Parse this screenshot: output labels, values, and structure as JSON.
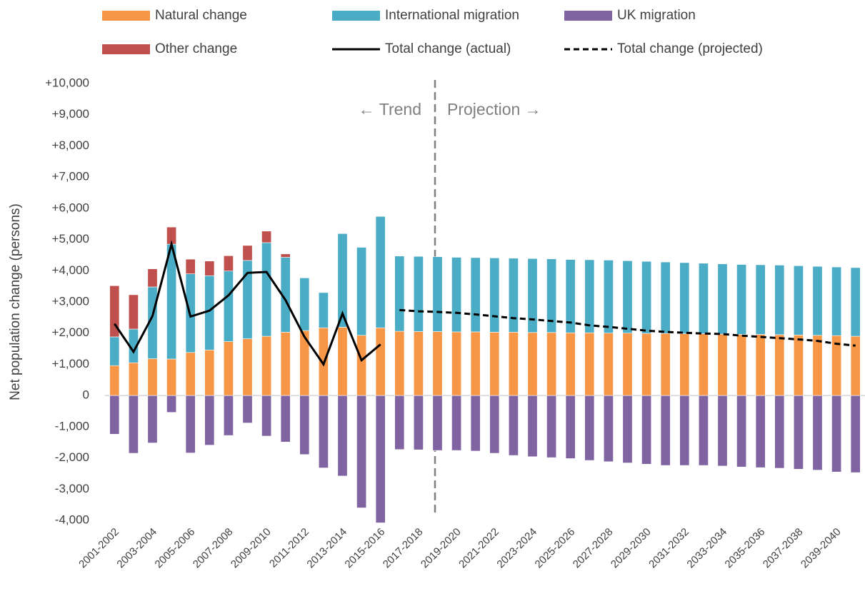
{
  "chart_data": {
    "type": "stacked-bar-line",
    "y_label": "Net population change (persons)",
    "annotations": [
      "← Trend",
      "Projection →"
    ],
    "categories": [
      "2001-2002",
      null,
      "2003-2004",
      null,
      "2005-2006",
      null,
      "2007-2008",
      null,
      "2009-2010",
      null,
      "2011-2012",
      null,
      "2013-2014",
      null,
      "2015-2016",
      null,
      "2017-2018",
      null,
      "2019-2020",
      null,
      "2021-2022",
      null,
      "2023-2024",
      null,
      "2025-2026",
      null,
      "2027-2028",
      null,
      "2029-2030",
      null,
      "2031-2032",
      null,
      "2033-2034",
      null,
      "2035-2036",
      null,
      "2037-2038",
      null,
      "2039-2040",
      null
    ],
    "series": [
      {
        "name": "Natural change",
        "color": "#f79646",
        "kind": "bar",
        "values": [
          960,
          1050,
          1180,
          1170,
          1380,
          1460,
          1730,
          1820,
          1900,
          2030,
          2080,
          2170,
          2190,
          1930,
          2170,
          2060,
          2050,
          2050,
          2040,
          2040,
          2030,
          2030,
          2020,
          2020,
          2010,
          2010,
          2000,
          2000,
          1990,
          1990,
          1980,
          1980,
          1970,
          1960,
          1960,
          1950,
          1940,
          1930,
          1920,
          1900
        ]
      },
      {
        "name": "International migration",
        "color": "#4bacc6",
        "kind": "bar",
        "values": [
          920,
          1080,
          2300,
          3680,
          2520,
          2380,
          2260,
          2510,
          3000,
          2400,
          1690,
          1130,
          3000,
          2820,
          3570,
          2410,
          2410,
          2400,
          2390,
          2380,
          2380,
          2370,
          2370,
          2360,
          2350,
          2340,
          2340,
          2320,
          2310,
          2290,
          2280,
          2260,
          2250,
          2240,
          2230,
          2230,
          2220,
          2210,
          2200,
          2200
        ]
      },
      {
        "name": "UK migration",
        "color": "#8064a2",
        "kind": "bar",
        "values": [
          -1240,
          -1850,
          -1520,
          -540,
          -1840,
          -1590,
          -1280,
          -880,
          -1300,
          -1490,
          -1890,
          -2320,
          -2580,
          -3600,
          -4080,
          -1730,
          -1740,
          -1760,
          -1760,
          -1780,
          -1850,
          -1920,
          -1960,
          -1990,
          -2020,
          -2080,
          -2120,
          -2160,
          -2200,
          -2240,
          -2240,
          -2240,
          -2260,
          -2290,
          -2310,
          -2330,
          -2360,
          -2390,
          -2450,
          -2470
        ]
      },
      {
        "name": "Other change",
        "color": "#c0504d",
        "kind": "bar",
        "values": [
          1640,
          1100,
          580,
          550,
          470,
          470,
          490,
          480,
          370,
          110,
          null,
          null,
          null,
          null,
          null,
          null,
          null,
          null,
          null,
          null,
          null,
          null,
          null,
          null,
          null,
          null,
          null,
          null,
          null,
          null,
          null,
          null,
          null,
          null,
          null,
          null,
          null,
          null,
          null,
          null
        ]
      },
      {
        "name": "Total change (actual)",
        "color": "#000000",
        "kind": "line",
        "dash": false,
        "values": [
          2300,
          1400,
          2550,
          4850,
          2530,
          2720,
          3210,
          3930,
          3960,
          3060,
          1880,
          1000,
          2630,
          1130,
          1640,
          null,
          null,
          null,
          null,
          null,
          null,
          null,
          null,
          null,
          null,
          null,
          null,
          null,
          null,
          null,
          null,
          null,
          null,
          null,
          null,
          null,
          null,
          null,
          null,
          null
        ]
      },
      {
        "name": "Total change (projected)",
        "color": "#000000",
        "kind": "line",
        "dash": true,
        "values": [
          null,
          null,
          null,
          null,
          null,
          null,
          null,
          null,
          null,
          null,
          null,
          null,
          null,
          null,
          null,
          2740,
          2700,
          2680,
          2650,
          2600,
          2540,
          2480,
          2440,
          2390,
          2340,
          2250,
          2200,
          2140,
          2080,
          2040,
          2010,
          1990,
          1970,
          1920,
          1880,
          1840,
          1800,
          1750,
          1660,
          1600
        ]
      }
    ],
    "ylim": [
      -4000,
      10000
    ],
    "yticks": [
      {
        "value": -4000,
        "label": "-4,000"
      },
      {
        "value": -3000,
        "label": "-3,000"
      },
      {
        "value": -2000,
        "label": "-2,000"
      },
      {
        "value": -1000,
        "label": "-1,000"
      },
      0,
      {
        "value": 1000,
        "label": "+1,000"
      },
      {
        "value": 2000,
        "label": "+2,000"
      },
      {
        "value": 3000,
        "label": "+3,000"
      },
      {
        "value": 4000,
        "label": "+4,000"
      },
      {
        "value": 5000,
        "label": "+5,000"
      },
      {
        "value": 6000,
        "label": "+6,000"
      },
      {
        "value": 7000,
        "label": "+7,000"
      },
      {
        "value": 8000,
        "label": "+8,000"
      },
      {
        "value": 9000,
        "label": "+9,000"
      },
      {
        "value": 10000,
        "label": "+10,000"
      }
    ],
    "grid": false
  }
}
